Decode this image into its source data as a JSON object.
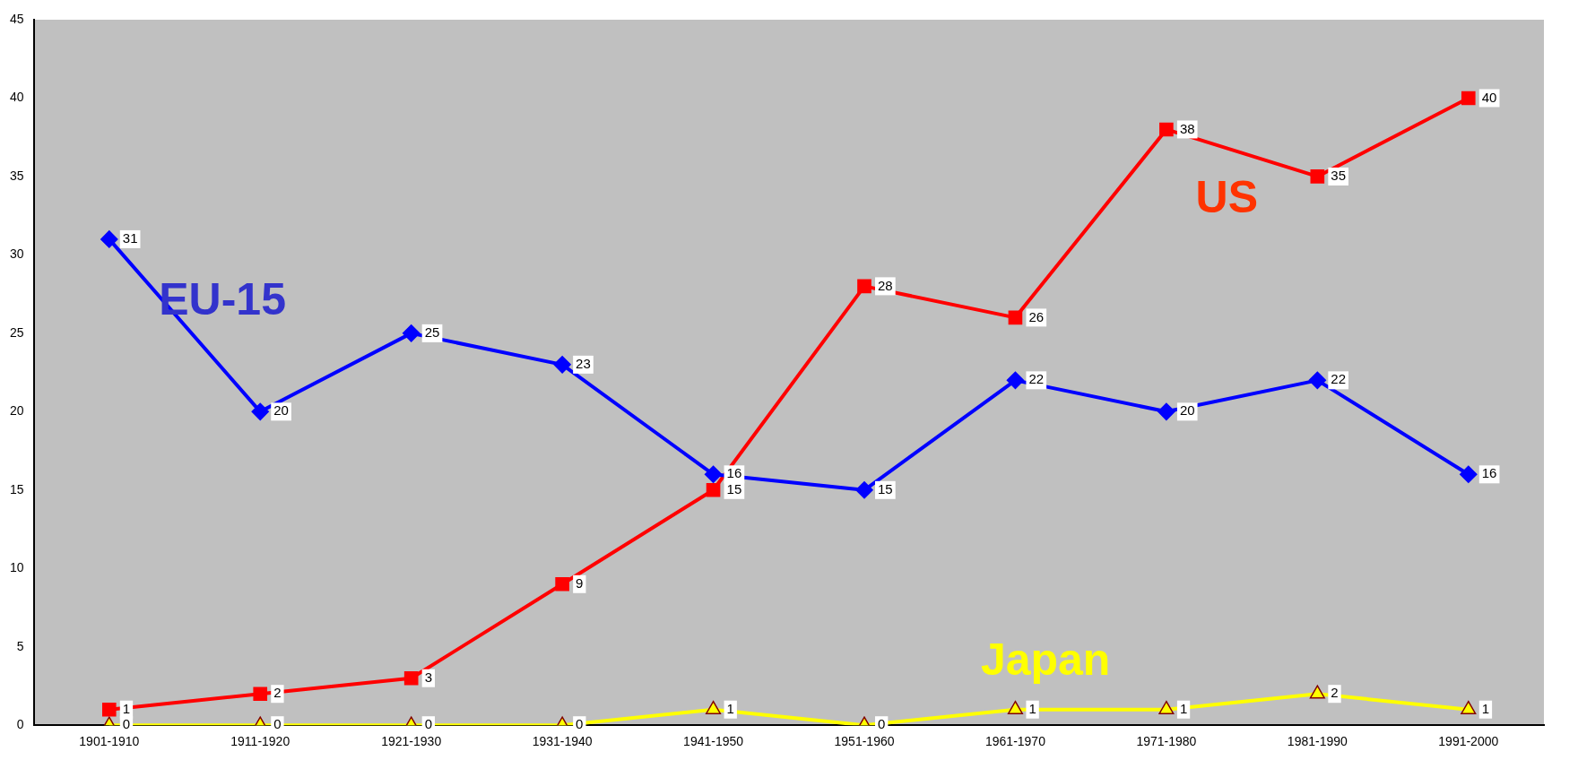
{
  "chart_data": {
    "type": "line",
    "categories": [
      "1901-1910",
      "1911-1920",
      "1921-1930",
      "1931-1940",
      "1941-1950",
      "1951-1960",
      "1961-1970",
      "1971-1980",
      "1981-1990",
      "1991-2000"
    ],
    "series": [
      {
        "name": "EU-15",
        "color": "#0000ff",
        "marker": "diamond",
        "values": [
          31,
          20,
          25,
          23,
          16,
          15,
          22,
          20,
          22,
          16
        ]
      },
      {
        "name": "US",
        "color": "#ff0000",
        "marker": "square",
        "values": [
          1,
          2,
          3,
          9,
          15,
          28,
          26,
          38,
          35,
          40
        ]
      },
      {
        "name": "Japan",
        "color": "#ffff00",
        "marker": "triangle",
        "values": [
          0,
          0,
          0,
          0,
          1,
          0,
          1,
          1,
          2,
          1
        ]
      }
    ],
    "ylim": [
      0,
      45
    ],
    "yticks": [
      0,
      5,
      10,
      15,
      20,
      25,
      30,
      35,
      40,
      45
    ],
    "grid": false,
    "legend": false,
    "data_labels": true
  }
}
